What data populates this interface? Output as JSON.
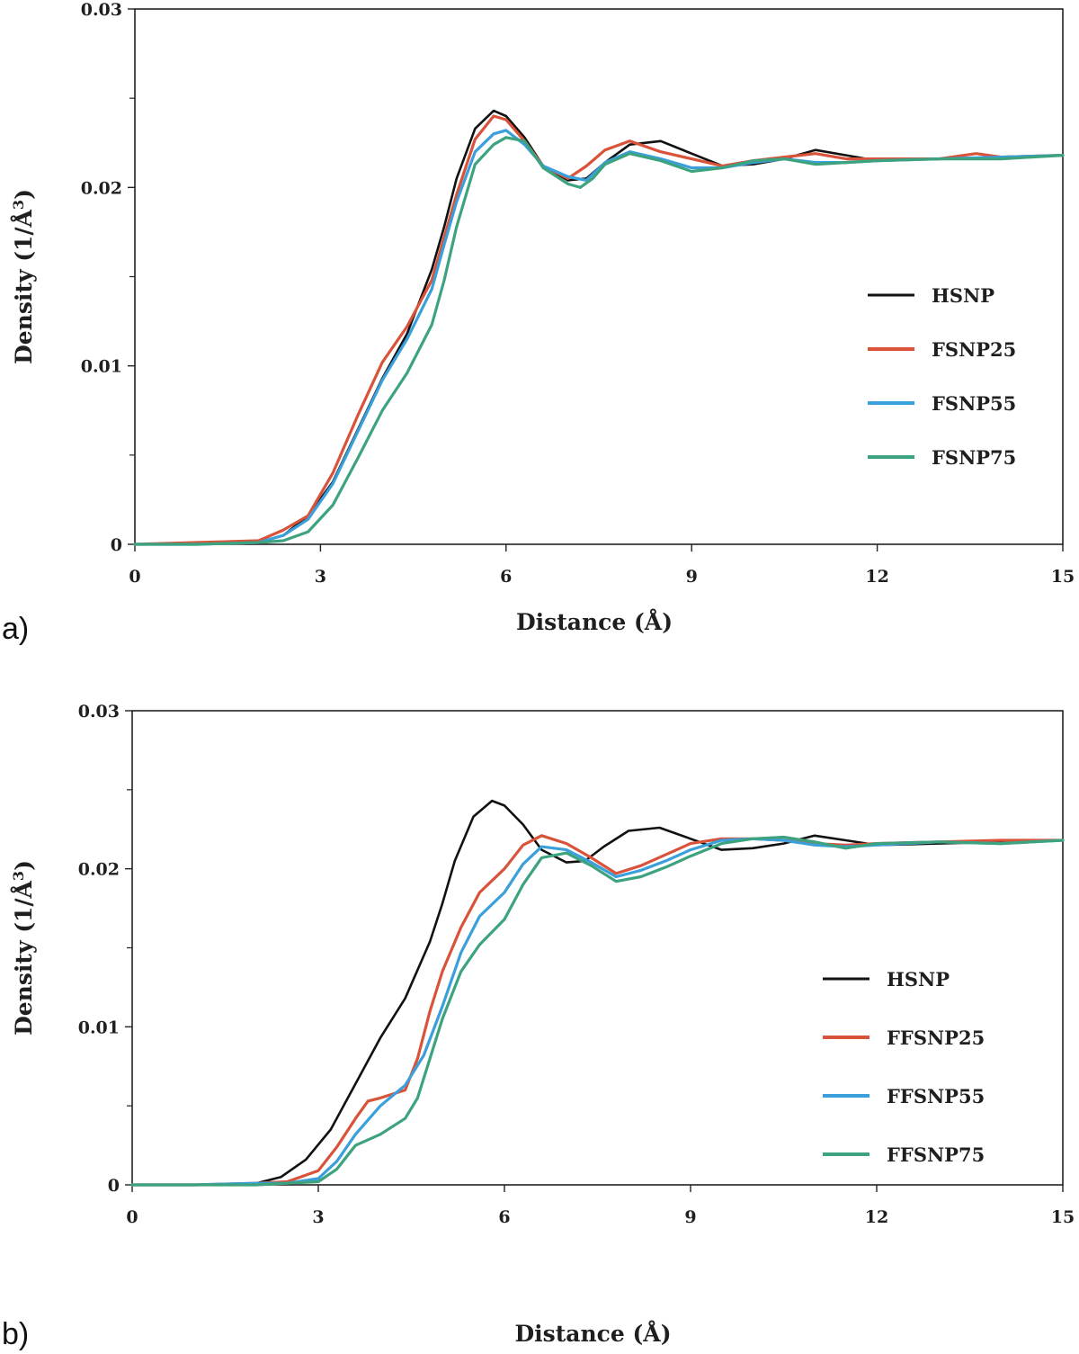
{
  "chart_data": [
    {
      "type": "line",
      "panel_label": "a)",
      "xlabel": "Distance (Å)",
      "ylabel_main": "Density (1/Å",
      "ylabel_sup": "3",
      "ylabel_close": ")",
      "xlim": [
        0,
        15
      ],
      "ylim": [
        0,
        0.03
      ],
      "xticks": [
        0,
        3,
        6,
        9,
        12,
        15
      ],
      "xtick_labels": [
        "0",
        "3",
        "6",
        "9",
        "12",
        "15"
      ],
      "yticks": [
        0,
        0.01,
        0.02,
        0.03
      ],
      "ytick_labels": [
        "0",
        "0.01",
        "0.02",
        "0.03"
      ],
      "grid": false,
      "legend_position": "right",
      "series": [
        {
          "name": "HSNP",
          "color": "#111111",
          "x": [
            0,
            1,
            2,
            2.4,
            2.8,
            3.2,
            3.6,
            4.0,
            4.4,
            4.8,
            5.0,
            5.2,
            5.5,
            5.8,
            6.0,
            6.3,
            6.6,
            7.0,
            7.3,
            7.6,
            8.0,
            8.5,
            9.0,
            9.5,
            10.0,
            10.5,
            11.0,
            11.5,
            12.0,
            13.0,
            14.0,
            15.0
          ],
          "y": [
            0,
            0,
            0.0001,
            0.0005,
            0.0016,
            0.0035,
            0.0064,
            0.0093,
            0.0118,
            0.0154,
            0.0178,
            0.0205,
            0.0233,
            0.0243,
            0.024,
            0.0228,
            0.0212,
            0.0204,
            0.0205,
            0.0214,
            0.0224,
            0.0226,
            0.0219,
            0.0212,
            0.0213,
            0.0216,
            0.0221,
            0.0218,
            0.0215,
            0.0216,
            0.0217,
            0.0218
          ]
        },
        {
          "name": "FSNP25",
          "color": "#d9533a",
          "x": [
            0,
            1,
            2,
            2.4,
            2.8,
            3.2,
            3.6,
            4.0,
            4.4,
            4.8,
            5.0,
            5.2,
            5.5,
            5.8,
            6.0,
            6.3,
            6.6,
            7.0,
            7.3,
            7.6,
            8.0,
            8.5,
            9.0,
            9.5,
            10.0,
            10.5,
            11.0,
            11.5,
            12.0,
            13.0,
            13.6,
            14.0,
            15.0
          ],
          "y": [
            0,
            0.0001,
            0.0002,
            0.0008,
            0.0016,
            0.004,
            0.0072,
            0.0102,
            0.0122,
            0.0148,
            0.0172,
            0.0196,
            0.0227,
            0.024,
            0.0238,
            0.0226,
            0.0212,
            0.0205,
            0.0212,
            0.0221,
            0.0226,
            0.022,
            0.0216,
            0.0212,
            0.0215,
            0.0217,
            0.0219,
            0.0216,
            0.0216,
            0.0216,
            0.0219,
            0.0217,
            0.0218
          ]
        },
        {
          "name": "FSNP55",
          "color": "#3a9fdb",
          "x": [
            0,
            1,
            2,
            2.4,
            2.8,
            3.2,
            3.6,
            4.0,
            4.4,
            4.8,
            5.0,
            5.2,
            5.5,
            5.8,
            6.0,
            6.3,
            6.6,
            7.0,
            7.3,
            7.6,
            8.0,
            8.5,
            9.0,
            9.5,
            10.0,
            10.5,
            11.0,
            11.5,
            12.0,
            13.0,
            14.0,
            15.0
          ],
          "y": [
            0,
            0,
            0.0001,
            0.0005,
            0.0014,
            0.0034,
            0.0063,
            0.0092,
            0.0115,
            0.0143,
            0.0168,
            0.0192,
            0.022,
            0.023,
            0.0232,
            0.0224,
            0.0212,
            0.0206,
            0.0204,
            0.0214,
            0.022,
            0.0216,
            0.0211,
            0.0211,
            0.0214,
            0.0216,
            0.0214,
            0.0214,
            0.0215,
            0.0216,
            0.0217,
            0.0218
          ]
        },
        {
          "name": "FSNP75",
          "color": "#3da37e",
          "x": [
            0,
            1,
            2,
            2.4,
            2.8,
            3.2,
            3.6,
            4.0,
            4.4,
            4.8,
            5.0,
            5.2,
            5.5,
            5.8,
            6.0,
            6.3,
            6.6,
            7.0,
            7.2,
            7.4,
            7.6,
            8.0,
            8.5,
            9.0,
            9.5,
            10.0,
            10.5,
            11.0,
            11.5,
            12.0,
            13.0,
            14.0,
            15.0
          ],
          "y": [
            0,
            0,
            0.0001,
            0.0002,
            0.0007,
            0.0022,
            0.0048,
            0.0075,
            0.0096,
            0.0123,
            0.0148,
            0.0178,
            0.0213,
            0.0224,
            0.0228,
            0.0226,
            0.0211,
            0.0202,
            0.02,
            0.0205,
            0.0213,
            0.0219,
            0.0215,
            0.0209,
            0.0211,
            0.0215,
            0.0216,
            0.0213,
            0.0214,
            0.0215,
            0.0216,
            0.0216,
            0.0218
          ]
        }
      ]
    },
    {
      "type": "line",
      "panel_label": "b)",
      "xlabel": "Distance (Å)",
      "ylabel_main": "Density (1/Å",
      "ylabel_sup": "3",
      "ylabel_close": ")",
      "xlim": [
        0,
        15
      ],
      "ylim": [
        0,
        0.03
      ],
      "xticks": [
        0,
        3,
        6,
        9,
        12,
        15
      ],
      "xtick_labels": [
        "0",
        "3",
        "6",
        "9",
        "12",
        "15"
      ],
      "yticks": [
        0,
        0.01,
        0.02,
        0.03
      ],
      "ytick_labels": [
        "0",
        "0.01",
        "0.02",
        "0.03"
      ],
      "grid": false,
      "legend_position": "right",
      "series": [
        {
          "name": "HSNP",
          "color": "#111111",
          "x": [
            0,
            1,
            2,
            2.4,
            2.8,
            3.2,
            3.6,
            4.0,
            4.4,
            4.8,
            5.0,
            5.2,
            5.5,
            5.8,
            6.0,
            6.3,
            6.6,
            7.0,
            7.3,
            7.6,
            8.0,
            8.5,
            9.0,
            9.5,
            10.0,
            10.5,
            11.0,
            11.5,
            12.0,
            13.0,
            14.0,
            15.0
          ],
          "y": [
            0,
            0,
            0.0001,
            0.0005,
            0.0016,
            0.0035,
            0.0064,
            0.0093,
            0.0118,
            0.0154,
            0.0178,
            0.0205,
            0.0233,
            0.0243,
            0.024,
            0.0228,
            0.0212,
            0.0204,
            0.0205,
            0.0214,
            0.0224,
            0.0226,
            0.0219,
            0.0212,
            0.0213,
            0.0216,
            0.0221,
            0.0218,
            0.0215,
            0.0216,
            0.0217,
            0.0218
          ]
        },
        {
          "name": "FFSNP25",
          "color": "#d9533a",
          "x": [
            0,
            1,
            2,
            2.5,
            3.0,
            3.3,
            3.6,
            3.8,
            4.0,
            4.4,
            4.6,
            4.8,
            5.0,
            5.3,
            5.6,
            6.0,
            6.3,
            6.6,
            7.0,
            7.4,
            7.8,
            8.2,
            8.6,
            9.0,
            9.5,
            10.0,
            10.5,
            11.0,
            11.5,
            12.0,
            13.0,
            14.0,
            15.0
          ],
          "y": [
            0,
            0,
            0.0001,
            0.0002,
            0.0009,
            0.0024,
            0.0042,
            0.0053,
            0.0055,
            0.006,
            0.008,
            0.011,
            0.0135,
            0.0163,
            0.0185,
            0.02,
            0.0215,
            0.0221,
            0.0216,
            0.0207,
            0.0197,
            0.0202,
            0.0209,
            0.0216,
            0.0219,
            0.0219,
            0.0218,
            0.0216,
            0.0215,
            0.0216,
            0.0217,
            0.0218,
            0.0218
          ]
        },
        {
          "name": "FFSNP55",
          "color": "#3a9fdb",
          "x": [
            0,
            1,
            2,
            2.5,
            3.0,
            3.3,
            3.6,
            4.0,
            4.4,
            4.7,
            5.0,
            5.3,
            5.6,
            6.0,
            6.3,
            6.6,
            7.0,
            7.4,
            7.8,
            8.2,
            8.6,
            9.0,
            9.5,
            10.0,
            10.5,
            11.0,
            11.5,
            12.0,
            13.0,
            14.0,
            15.0
          ],
          "y": [
            0,
            0,
            0.0001,
            0.0001,
            0.0004,
            0.0015,
            0.0032,
            0.005,
            0.0063,
            0.0082,
            0.0113,
            0.0147,
            0.017,
            0.0185,
            0.0203,
            0.0214,
            0.0212,
            0.0204,
            0.0195,
            0.0199,
            0.0205,
            0.0212,
            0.0218,
            0.0219,
            0.0218,
            0.0215,
            0.0214,
            0.0215,
            0.0217,
            0.0216,
            0.0218
          ]
        },
        {
          "name": "FFSNP75",
          "color": "#3da37e",
          "x": [
            0,
            1,
            2,
            2.5,
            3.0,
            3.3,
            3.6,
            4.0,
            4.4,
            4.6,
            4.8,
            5.0,
            5.3,
            5.6,
            6.0,
            6.3,
            6.6,
            7.0,
            7.4,
            7.8,
            8.2,
            8.6,
            9.0,
            9.5,
            10.0,
            10.5,
            11.0,
            11.5,
            12.0,
            13.0,
            14.0,
            15.0
          ],
          "y": [
            0,
            0,
            0,
            0.0001,
            0.0002,
            0.001,
            0.0025,
            0.0032,
            0.0042,
            0.0055,
            0.008,
            0.0105,
            0.0135,
            0.0152,
            0.0168,
            0.019,
            0.0207,
            0.021,
            0.0202,
            0.0192,
            0.0195,
            0.0201,
            0.0208,
            0.0216,
            0.0219,
            0.022,
            0.0217,
            0.0213,
            0.0216,
            0.0217,
            0.0216,
            0.0218
          ]
        }
      ]
    }
  ]
}
